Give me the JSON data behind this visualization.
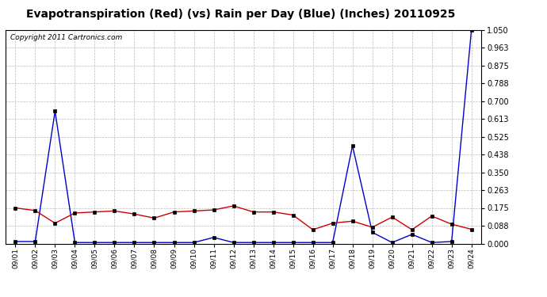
{
  "title": "Evapotranspiration (Red) (vs) Rain per Day (Blue) (Inches) 20110925",
  "copyright": "Copyright 2011 Cartronics.com",
  "dates": [
    "09/01",
    "09/02",
    "09/03",
    "09/04",
    "09/05",
    "09/06",
    "09/07",
    "09/08",
    "09/09",
    "09/10",
    "09/11",
    "09/12",
    "09/13",
    "09/14",
    "09/15",
    "09/16",
    "09/17",
    "09/18",
    "09/19",
    "09/20",
    "09/21",
    "09/22",
    "09/23",
    "09/24"
  ],
  "red_et": [
    0.175,
    0.162,
    0.1,
    0.15,
    0.155,
    0.16,
    0.145,
    0.125,
    0.155,
    0.16,
    0.165,
    0.185,
    0.155,
    0.155,
    0.14,
    0.068,
    0.1,
    0.11,
    0.08,
    0.13,
    0.068,
    0.135,
    0.095,
    0.07
  ],
  "blue_rain": [
    0.01,
    0.01,
    0.65,
    0.005,
    0.005,
    0.005,
    0.005,
    0.005,
    0.005,
    0.005,
    0.03,
    0.005,
    0.005,
    0.005,
    0.005,
    0.005,
    0.005,
    0.48,
    0.055,
    0.005,
    0.045,
    0.005,
    0.01,
    1.05
  ],
  "ylim": [
    0.0,
    1.05
  ],
  "yticks": [
    0.0,
    0.088,
    0.175,
    0.263,
    0.35,
    0.438,
    0.525,
    0.613,
    0.7,
    0.788,
    0.875,
    0.963,
    1.05
  ],
  "bg_color": "#ffffff",
  "plot_bg_color": "#ffffff",
  "grid_color": "#bbbbbb",
  "red_color": "#cc0000",
  "blue_color": "#0000cc",
  "title_fontsize": 10,
  "copyright_fontsize": 6.5
}
